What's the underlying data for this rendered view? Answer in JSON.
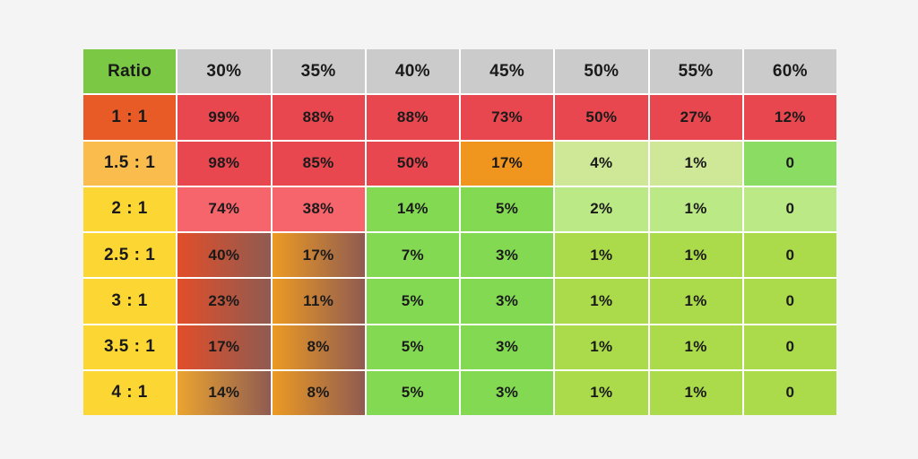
{
  "page": {
    "background": "#F4F4F4",
    "grid_line_color": "#FFFFFF",
    "text_color": "#1A1A1A"
  },
  "palette": {
    "header_green": "#7AC843",
    "header_gray": "#CBCBCB",
    "label_orange": "#E85A26",
    "label_amber": "#F9BC4D",
    "label_yellow": "#FCD733",
    "cell_red": "#E9474F",
    "cell_pink": "#F6646C",
    "cell_orange": "#F0951E",
    "cell_green": "#83DA52",
    "cell_green_bright": "#8BDC62",
    "cell_palegreen": "#CFE898",
    "cell_lime": "#BBE985",
    "cell_yellowgreen": "#ABDB4A",
    "grad_brown": "#8F5B51",
    "grad_redorange": "#E24E2A",
    "grad_amber": "#EC9A24"
  },
  "table": {
    "corner_label": "Ratio",
    "columns": [
      "30%",
      "35%",
      "40%",
      "45%",
      "50%",
      "55%",
      "60%"
    ],
    "rows": [
      {
        "label": "1 : 1",
        "label_bg": "#E85A26",
        "cells": [
          {
            "text": "99%",
            "bg": "#E9474F"
          },
          {
            "text": "88%",
            "bg": "#E9474F"
          },
          {
            "text": "88%",
            "bg": "#E9474F"
          },
          {
            "text": "73%",
            "bg": "#E9474F"
          },
          {
            "text": "50%",
            "bg": "#E9474F"
          },
          {
            "text": "27%",
            "bg": "#E9474F"
          },
          {
            "text": "12%",
            "bg": "#E9474F"
          }
        ]
      },
      {
        "label": "1.5 : 1",
        "label_bg": "#F9BC4D",
        "cells": [
          {
            "text": "98%",
            "bg": "#E9474F"
          },
          {
            "text": "85%",
            "bg": "#E9474F"
          },
          {
            "text": "50%",
            "bg": "#E9474F"
          },
          {
            "text": "17%",
            "bg": "#F0951E"
          },
          {
            "text": "4%",
            "bg": "#CFE898"
          },
          {
            "text": "1%",
            "bg": "#CFE898"
          },
          {
            "text": "0",
            "bg": "#8BDC62"
          }
        ]
      },
      {
        "label": "2 : 1",
        "label_bg": "#FCD733",
        "cells": [
          {
            "text": "74%",
            "bg": "#F6646C"
          },
          {
            "text": "38%",
            "bg": "#F6646C"
          },
          {
            "text": "14%",
            "bg": "#83DA52"
          },
          {
            "text": "5%",
            "bg": "#83DA52"
          },
          {
            "text": "2%",
            "bg": "#BBE985"
          },
          {
            "text": "1%",
            "bg": "#BBE985"
          },
          {
            "text": "0",
            "bg": "#BBE985"
          }
        ]
      },
      {
        "label": "2.5 : 1",
        "label_bg": "#FCD733",
        "cells": [
          {
            "text": "40%",
            "bg": "#E24E2A",
            "bg2": "#8F5B51"
          },
          {
            "text": "17%",
            "bg": "#EC9A24",
            "bg2": "#8F5B51"
          },
          {
            "text": "7%",
            "bg": "#83DA52"
          },
          {
            "text": "3%",
            "bg": "#83DA52"
          },
          {
            "text": "1%",
            "bg": "#ABDB4A"
          },
          {
            "text": "1%",
            "bg": "#ABDB4A"
          },
          {
            "text": "0",
            "bg": "#ABDB4A"
          }
        ]
      },
      {
        "label": "3 : 1",
        "label_bg": "#FCD733",
        "cells": [
          {
            "text": "23%",
            "bg": "#E24E2A",
            "bg2": "#8F5B51"
          },
          {
            "text": "11%",
            "bg": "#EC9A24",
            "bg2": "#8F5B51"
          },
          {
            "text": "5%",
            "bg": "#83DA52"
          },
          {
            "text": "3%",
            "bg": "#83DA52"
          },
          {
            "text": "1%",
            "bg": "#ABDB4A"
          },
          {
            "text": "1%",
            "bg": "#ABDB4A"
          },
          {
            "text": "0",
            "bg": "#ABDB4A"
          }
        ]
      },
      {
        "label": "3.5 : 1",
        "label_bg": "#FCD733",
        "cells": [
          {
            "text": "17%",
            "bg": "#E24E2A",
            "bg2": "#8F5B51"
          },
          {
            "text": "8%",
            "bg": "#EC9A24",
            "bg2": "#8F5B51"
          },
          {
            "text": "5%",
            "bg": "#83DA52"
          },
          {
            "text": "3%",
            "bg": "#83DA52"
          },
          {
            "text": "1%",
            "bg": "#ABDB4A"
          },
          {
            "text": "1%",
            "bg": "#ABDB4A"
          },
          {
            "text": "0",
            "bg": "#ABDB4A"
          }
        ]
      },
      {
        "label": "4 : 1",
        "label_bg": "#FCD733",
        "cells": [
          {
            "text": "14%",
            "bg": "#EBA430",
            "bg2": "#8F5B51"
          },
          {
            "text": "8%",
            "bg": "#EC9A24",
            "bg2": "#8F5B51"
          },
          {
            "text": "5%",
            "bg": "#83DA52"
          },
          {
            "text": "3%",
            "bg": "#83DA52"
          },
          {
            "text": "1%",
            "bg": "#ABDB4A"
          },
          {
            "text": "1%",
            "bg": "#ABDB4A"
          },
          {
            "text": "0",
            "bg": "#ABDB4A"
          }
        ]
      }
    ]
  },
  "chart_data": {
    "type": "table",
    "title": "",
    "corner_label": "Ratio",
    "columns": [
      "30%",
      "35%",
      "40%",
      "45%",
      "50%",
      "55%",
      "60%"
    ],
    "row_labels": [
      "1 : 1",
      "1.5 : 1",
      "2 : 1",
      "2.5 : 1",
      "3 : 1",
      "3.5 : 1",
      "4 : 1"
    ],
    "values": [
      [
        "99%",
        "88%",
        "88%",
        "73%",
        "50%",
        "27%",
        "12%"
      ],
      [
        "98%",
        "85%",
        "50%",
        "17%",
        "4%",
        "1%",
        "0"
      ],
      [
        "74%",
        "38%",
        "14%",
        "5%",
        "2%",
        "1%",
        "0"
      ],
      [
        "40%",
        "17%",
        "7%",
        "3%",
        "1%",
        "1%",
        "0"
      ],
      [
        "23%",
        "11%",
        "5%",
        "3%",
        "1%",
        "1%",
        "0"
      ],
      [
        "17%",
        "8%",
        "5%",
        "3%",
        "1%",
        "1%",
        "0"
      ],
      [
        "14%",
        "8%",
        "5%",
        "3%",
        "1%",
        "1%",
        "0"
      ]
    ]
  }
}
